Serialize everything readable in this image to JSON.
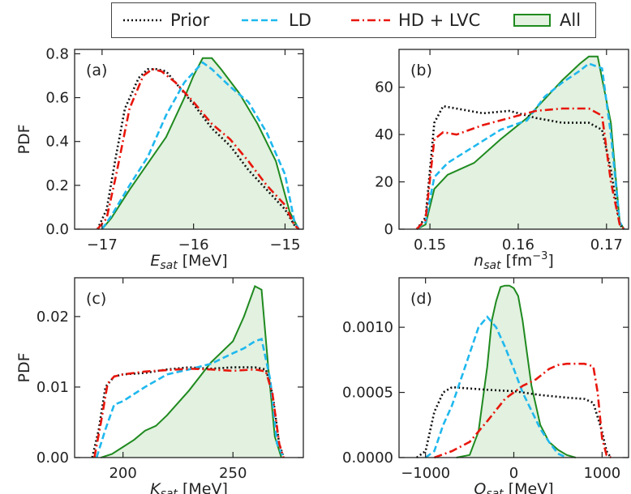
{
  "legend": {
    "items": [
      {
        "label": "Prior",
        "color": "#111111",
        "style": "dotted"
      },
      {
        "label": "LD",
        "color": "#1fb8ee",
        "style": "dashed"
      },
      {
        "label": "HD + LVC",
        "color": "#e8160c",
        "style": "dashdot"
      },
      {
        "label": "All",
        "color": "#1f8a1f",
        "style": "filled",
        "fill": "#e2f1e0"
      }
    ],
    "placement": "top-center"
  },
  "chart_data": [
    {
      "type": "line",
      "panel": "(a)",
      "xlabel": "E_sat [MeV]",
      "ylabel": "PDF",
      "xlim": [
        -17.3,
        -14.8
      ],
      "ylim": [
        0,
        0.82
      ],
      "xticks": [
        -17,
        -16,
        -15
      ],
      "xtick_labels": [
        "−17",
        "−16",
        "−15"
      ],
      "yticks": [
        0,
        0.2,
        0.4,
        0.6,
        0.8
      ],
      "ytick_labels": [
        "0.0",
        "0.2",
        "0.4",
        "0.6",
        "0.8"
      ],
      "series": [
        {
          "name": "Prior",
          "x": [
            -17.05,
            -16.95,
            -16.85,
            -16.75,
            -16.6,
            -16.5,
            -16.4,
            -16.3,
            -16.2,
            -16.0,
            -15.8,
            -15.6,
            -15.4,
            -15.2,
            -15.0,
            -14.9,
            -14.85
          ],
          "y": [
            0.0,
            0.09,
            0.33,
            0.55,
            0.69,
            0.73,
            0.73,
            0.72,
            0.67,
            0.57,
            0.46,
            0.38,
            0.27,
            0.18,
            0.09,
            0.02,
            0.0
          ]
        },
        {
          "name": "LD",
          "x": [
            -17.0,
            -16.9,
            -16.7,
            -16.5,
            -16.3,
            -16.1,
            -15.9,
            -15.8,
            -15.6,
            -15.4,
            -15.2,
            -15.0,
            -14.9,
            -14.85
          ],
          "y": [
            0.0,
            0.06,
            0.2,
            0.33,
            0.52,
            0.67,
            0.76,
            0.73,
            0.65,
            0.58,
            0.44,
            0.25,
            0.04,
            0.0
          ]
        },
        {
          "name": "HD + LVC",
          "x": [
            -17.05,
            -16.95,
            -16.85,
            -16.7,
            -16.55,
            -16.45,
            -16.35,
            -16.2,
            -16.0,
            -15.8,
            -15.6,
            -15.4,
            -15.2,
            -15.0,
            -14.9,
            -14.85
          ],
          "y": [
            0.0,
            0.05,
            0.24,
            0.55,
            0.7,
            0.73,
            0.72,
            0.67,
            0.58,
            0.48,
            0.41,
            0.31,
            0.2,
            0.11,
            0.02,
            0.0
          ]
        },
        {
          "name": "All",
          "x": [
            -17.0,
            -16.9,
            -16.7,
            -16.5,
            -16.3,
            -16.1,
            -16.0,
            -15.9,
            -15.8,
            -15.7,
            -15.5,
            -15.3,
            -15.1,
            -14.95,
            -14.85
          ],
          "y": [
            0.0,
            0.05,
            0.18,
            0.3,
            0.42,
            0.6,
            0.7,
            0.78,
            0.78,
            0.73,
            0.62,
            0.48,
            0.31,
            0.08,
            0.0
          ]
        }
      ]
    },
    {
      "type": "line",
      "panel": "(b)",
      "xlabel": "n_sat [fm^-3]",
      "ylabel": "",
      "xlim": [
        0.1465,
        0.1725
      ],
      "ylim": [
        0,
        76
      ],
      "xticks": [
        0.15,
        0.16,
        0.17
      ],
      "xtick_labels": [
        "0.15",
        "0.16",
        "0.17"
      ],
      "yticks": [
        0,
        20,
        40,
        60
      ],
      "ytick_labels": [
        "0",
        "20",
        "40",
        "60"
      ],
      "series": [
        {
          "name": "Prior",
          "x": [
            0.1485,
            0.1495,
            0.1505,
            0.1515,
            0.153,
            0.156,
            0.159,
            0.162,
            0.165,
            0.168,
            0.1695,
            0.1705,
            0.1715,
            0.172
          ],
          "y": [
            0,
            5,
            45,
            52,
            51,
            49,
            50,
            47,
            45,
            45,
            42,
            25,
            2,
            0
          ]
        },
        {
          "name": "LD",
          "x": [
            0.1485,
            0.1495,
            0.1505,
            0.152,
            0.155,
            0.158,
            0.161,
            0.163,
            0.165,
            0.167,
            0.168,
            0.1695,
            0.1705,
            0.1715,
            0.172
          ],
          "y": [
            0,
            3,
            22,
            28,
            35,
            42,
            46,
            56,
            62,
            67,
            70,
            68,
            40,
            3,
            0
          ]
        },
        {
          "name": "HD + LVC",
          "x": [
            0.1485,
            0.1495,
            0.1505,
            0.1515,
            0.153,
            0.156,
            0.159,
            0.162,
            0.165,
            0.168,
            0.1695,
            0.1705,
            0.1715,
            0.172
          ],
          "y": [
            0,
            4,
            38,
            41,
            40,
            44,
            47,
            50,
            51,
            51,
            48,
            20,
            2,
            0
          ]
        },
        {
          "name": "All",
          "x": [
            0.1485,
            0.1495,
            0.1505,
            0.152,
            0.155,
            0.158,
            0.161,
            0.163,
            0.165,
            0.167,
            0.168,
            0.169,
            0.1705,
            0.1715,
            0.172
          ],
          "y": [
            0,
            2,
            17,
            23,
            28,
            38,
            47,
            55,
            63,
            70,
            73,
            73,
            45,
            3,
            0
          ]
        }
      ]
    },
    {
      "type": "line",
      "panel": "(c)",
      "xlabel": "K_sat [MeV]",
      "ylabel": "PDF",
      "xlim": [
        178,
        282
      ],
      "ylim": [
        0,
        0.0255
      ],
      "xticks": [
        200,
        250
      ],
      "xtick_labels": [
        "200",
        "250"
      ],
      "yticks": [
        0,
        0.01,
        0.02
      ],
      "ytick_labels": [
        "0.00",
        "0.01",
        "0.02"
      ],
      "series": [
        {
          "name": "Prior",
          "x": [
            186,
            189,
            192,
            196,
            200,
            210,
            220,
            230,
            240,
            250,
            260,
            265,
            268,
            271,
            273
          ],
          "y": [
            0,
            0.004,
            0.01,
            0.0115,
            0.0118,
            0.012,
            0.0125,
            0.0128,
            0.0126,
            0.0128,
            0.0128,
            0.0125,
            0.009,
            0.002,
            0
          ]
        },
        {
          "name": "LD",
          "x": [
            188,
            192,
            196,
            200,
            205,
            210,
            220,
            230,
            240,
            250,
            255,
            260,
            263,
            267,
            270,
            273
          ],
          "y": [
            0,
            0.004,
            0.0075,
            0.008,
            0.009,
            0.01,
            0.0118,
            0.0125,
            0.0133,
            0.0148,
            0.0155,
            0.0165,
            0.0168,
            0.011,
            0.002,
            0
          ]
        },
        {
          "name": "HD + LVC",
          "x": [
            187,
            190,
            193,
            196,
            200,
            210,
            220,
            230,
            240,
            250,
            260,
            265,
            268,
            271,
            273
          ],
          "y": [
            0,
            0.005,
            0.0105,
            0.0115,
            0.0118,
            0.0122,
            0.0124,
            0.0126,
            0.0125,
            0.0123,
            0.0125,
            0.0122,
            0.009,
            0.002,
            0
          ]
        },
        {
          "name": "All",
          "x": [
            190,
            195,
            200,
            205,
            210,
            215,
            220,
            230,
            240,
            250,
            255,
            260,
            263,
            266,
            269,
            272
          ],
          "y": [
            0,
            0.0005,
            0.0015,
            0.0025,
            0.0038,
            0.0045,
            0.006,
            0.0095,
            0.0135,
            0.0165,
            0.02,
            0.0243,
            0.0238,
            0.013,
            0.003,
            0
          ]
        }
      ]
    },
    {
      "type": "line",
      "panel": "(d)",
      "xlabel": "Q_sat [MeV]",
      "ylabel": "",
      "xlim": [
        -1300,
        1300
      ],
      "ylim": [
        0,
        0.00138
      ],
      "xticks": [
        -1000,
        0,
        1000
      ],
      "xtick_labels": [
        "−1000",
        "0",
        "1000"
      ],
      "yticks": [
        0,
        0.0005,
        0.001
      ],
      "ytick_labels": [
        "0.0000",
        "0.0005",
        "0.0010"
      ],
      "series": [
        {
          "name": "Prior",
          "x": [
            -1100,
            -1000,
            -900,
            -800,
            -700,
            -500,
            -300,
            0,
            300,
            600,
            800,
            900,
            1000,
            1050,
            1100
          ],
          "y": [
            0,
            5e-05,
            0.00035,
            0.0005,
            0.00054,
            0.00053,
            0.00052,
            0.00051,
            0.00048,
            0.00046,
            0.00045,
            0.00042,
            0.0002,
            5e-05,
            0
          ]
        },
        {
          "name": "LD",
          "x": [
            -1000,
            -900,
            -800,
            -700,
            -600,
            -500,
            -400,
            -300,
            -200,
            -100,
            0,
            100,
            200,
            300,
            400,
            500,
            600
          ],
          "y": [
            0,
            5e-05,
            0.00025,
            0.0004,
            0.0006,
            0.0008,
            0.001,
            0.00108,
            0.001,
            0.00085,
            0.00068,
            0.0005,
            0.00036,
            0.00022,
            0.00012,
            3e-05,
            0
          ]
        },
        {
          "name": "HD + LVC",
          "x": [
            -900,
            -700,
            -500,
            -300,
            -100,
            100,
            250,
            400,
            500,
            600,
            700,
            800,
            900,
            950,
            1000,
            1050,
            1100
          ],
          "y": [
            0,
            5e-05,
            0.00012,
            0.00028,
            0.00045,
            0.00055,
            0.0006,
            0.00068,
            0.00071,
            0.00072,
            0.00072,
            0.00072,
            0.0007,
            0.0005,
            0.00015,
            2e-05,
            0
          ]
        },
        {
          "name": "All",
          "x": [
            -650,
            -500,
            -400,
            -300,
            -250,
            -200,
            -150,
            -100,
            -50,
            0,
            50,
            100,
            150,
            200,
            300,
            400,
            500,
            600,
            700
          ],
          "y": [
            0,
            2e-05,
            0.0002,
            0.0007,
            0.00105,
            0.0012,
            0.00131,
            0.00132,
            0.00132,
            0.0013,
            0.00124,
            0.00105,
            0.0008,
            0.00055,
            0.00025,
            0.00012,
            6e-05,
            2e-05,
            0
          ]
        }
      ]
    }
  ]
}
